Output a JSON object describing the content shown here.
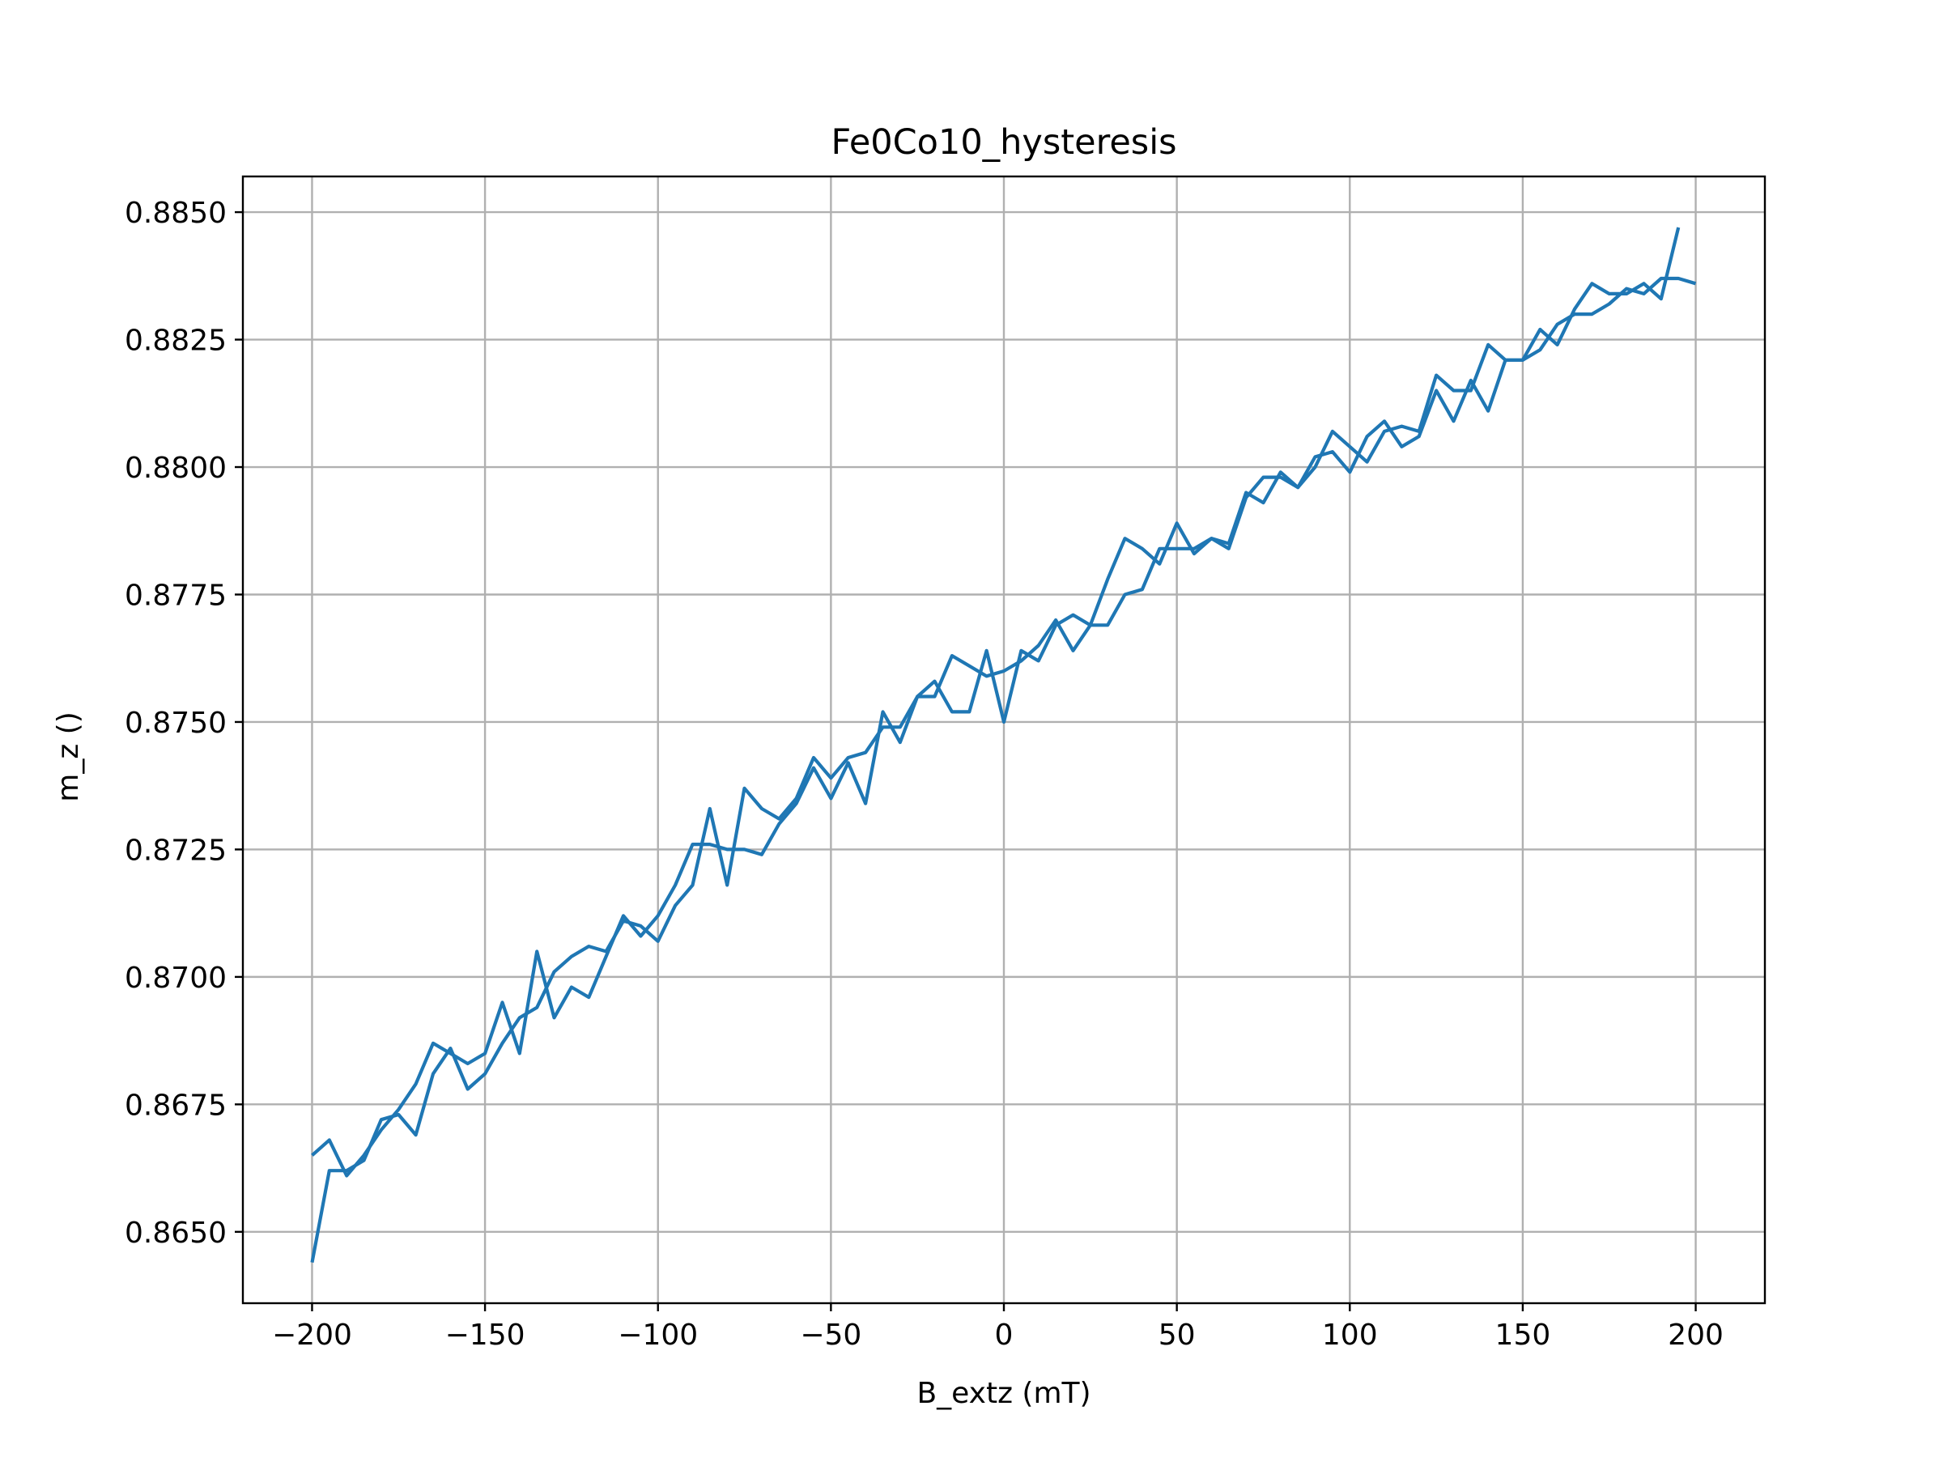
{
  "chart_data": {
    "type": "line",
    "title": "Fe0Co10_hysteresis",
    "xlabel": "B_extz (mT)",
    "ylabel": "m_z ()",
    "xlim": [
      -220,
      220
    ],
    "ylim": [
      0.8636,
      0.8857
    ],
    "x_ticks": [
      -200,
      -150,
      -100,
      -50,
      0,
      50,
      100,
      150,
      200
    ],
    "x_tick_labels": [
      "−200",
      "−150",
      "−100",
      "−50",
      "0",
      "50",
      "100",
      "150",
      "200"
    ],
    "y_ticks": [
      0.865,
      0.8675,
      0.87,
      0.8725,
      0.875,
      0.8775,
      0.88,
      0.8825,
      0.885
    ],
    "y_tick_labels": [
      "0.8650",
      "0.8675",
      "0.8700",
      "0.8725",
      "0.8750",
      "0.8775",
      "0.8800",
      "0.8825",
      "0.8850"
    ],
    "grid": true,
    "color": "#1f77b4",
    "series": [
      {
        "x": [
          -200,
          -195,
          -190,
          -185,
          -180,
          -175,
          -170,
          -165,
          -160,
          -155,
          -150,
          -145,
          -140,
          -135,
          -130,
          -125,
          -120,
          -115,
          -110,
          -105,
          -100,
          -95,
          -90,
          -85,
          -80,
          -75,
          -70,
          -65,
          -60,
          -55,
          -50,
          -45,
          -40,
          -35,
          -30,
          -25,
          -20,
          -15,
          -10,
          -5,
          0,
          5,
          10,
          15,
          20,
          25,
          30,
          35,
          40,
          45,
          50,
          55,
          60,
          65,
          70,
          75,
          80,
          85,
          90,
          95,
          100,
          105,
          110,
          115,
          120,
          125,
          130,
          135,
          140,
          145,
          150,
          155,
          160,
          165,
          170,
          175,
          180,
          185,
          190,
          195,
          200
        ],
        "y": [
          0.8644,
          0.8662,
          0.8662,
          0.8664,
          0.8672,
          0.8673,
          0.8669,
          0.8681,
          0.8686,
          0.8678,
          0.8681,
          0.8687,
          0.8692,
          0.8694,
          0.8701,
          0.8704,
          0.8706,
          0.8705,
          0.8711,
          0.871,
          0.8707,
          0.8714,
          0.8718,
          0.8733,
          0.8718,
          0.8737,
          0.8733,
          0.8731,
          0.8735,
          0.8743,
          0.8739,
          0.8743,
          0.8744,
          0.8749,
          0.8749,
          0.8755,
          0.8755,
          0.8763,
          0.8761,
          0.8759,
          0.876,
          0.8762,
          0.8765,
          0.877,
          0.8764,
          0.8769,
          0.8778,
          0.8786,
          0.8784,
          0.8781,
          0.8789,
          0.8783,
          0.8786,
          0.8785,
          0.8795,
          0.8793,
          0.8799,
          0.8796,
          0.8802,
          0.8803,
          0.8799,
          0.8806,
          0.8809,
          0.8804,
          0.8806,
          0.8815,
          0.8809,
          0.8817,
          0.8811,
          0.8821,
          0.8821,
          0.8823,
          0.8828,
          0.883,
          0.883,
          0.8832,
          0.8835,
          0.8834,
          0.8837,
          0.8837,
          0.8836
        ]
      },
      {
        "x": [
          195,
          190,
          185,
          180,
          175,
          170,
          165,
          160,
          155,
          150,
          145,
          140,
          135,
          130,
          125,
          120,
          115,
          110,
          105,
          100,
          95,
          90,
          85,
          80,
          75,
          70,
          65,
          60,
          55,
          50,
          45,
          40,
          35,
          30,
          25,
          20,
          15,
          10,
          5,
          0,
          -5,
          -10,
          -15,
          -20,
          -25,
          -30,
          -35,
          -40,
          -45,
          -50,
          -55,
          -60,
          -65,
          -70,
          -75,
          -80,
          -85,
          -90,
          -95,
          -100,
          -105,
          -110,
          -115,
          -120,
          -125,
          -130,
          -135,
          -140,
          -145,
          -150,
          -155,
          -160,
          -165,
          -170,
          -175,
          -180,
          -185,
          -190,
          -195,
          -200
        ],
        "y": [
          0.8847,
          0.8833,
          0.8836,
          0.8834,
          0.8834,
          0.8836,
          0.8831,
          0.8824,
          0.8827,
          0.8821,
          0.8821,
          0.8824,
          0.8815,
          0.8815,
          0.8818,
          0.8807,
          0.8808,
          0.8807,
          0.8801,
          0.8804,
          0.8807,
          0.88,
          0.8796,
          0.8798,
          0.8798,
          0.8794,
          0.8784,
          0.8786,
          0.8784,
          0.8784,
          0.8784,
          0.8776,
          0.8775,
          0.8769,
          0.8769,
          0.8771,
          0.8769,
          0.8762,
          0.8764,
          0.875,
          0.8764,
          0.8752,
          0.8752,
          0.8758,
          0.8755,
          0.8746,
          0.8752,
          0.8734,
          0.8742,
          0.8735,
          0.8741,
          0.8734,
          0.873,
          0.8724,
          0.8725,
          0.8725,
          0.8726,
          0.8726,
          0.8718,
          0.8712,
          0.8708,
          0.8712,
          0.8704,
          0.8696,
          0.8698,
          0.8692,
          0.8705,
          0.8685,
          0.8695,
          0.8685,
          0.8683,
          0.8685,
          0.8687,
          0.8679,
          0.8674,
          0.867,
          0.8665,
          0.8661,
          0.8668,
          0.8665
        ]
      }
    ]
  }
}
